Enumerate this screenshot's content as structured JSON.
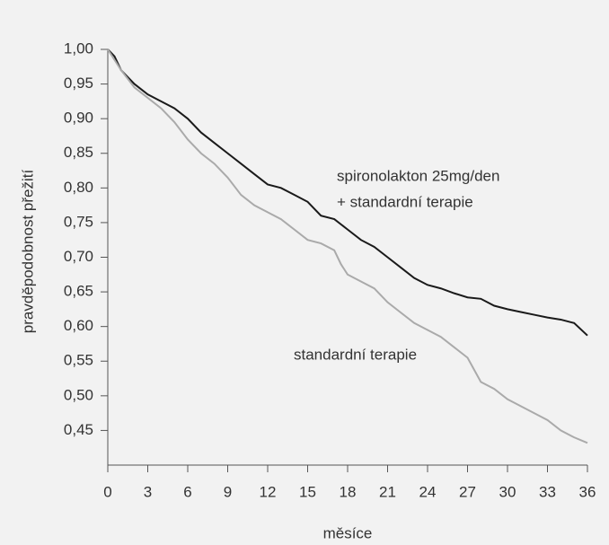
{
  "chart_data": {
    "type": "line",
    "x_label": "měsíce",
    "y_label": "pravděpodobnost přežití",
    "annotations": [
      "spironolakton 25mg/den",
      "+ standardní terapie",
      "standardní terapie"
    ],
    "xlim": [
      0,
      36
    ],
    "xticks": [
      0,
      3,
      6,
      9,
      12,
      15,
      18,
      21,
      24,
      27,
      30,
      33,
      36
    ],
    "ylim": [
      0.4,
      1.0
    ],
    "yticks": [
      {
        "value": 0.45,
        "label": "0,45"
      },
      {
        "value": 0.5,
        "label": "0,50"
      },
      {
        "value": 0.55,
        "label": "0,55"
      },
      {
        "value": 0.6,
        "label": "0,60"
      },
      {
        "value": 0.65,
        "label": "0,65"
      },
      {
        "value": 0.7,
        "label": "0,70"
      },
      {
        "value": 0.75,
        "label": "0,75"
      },
      {
        "value": 0.8,
        "label": "0,80"
      },
      {
        "value": 0.85,
        "label": "0,85"
      },
      {
        "value": 0.9,
        "label": "0,90"
      },
      {
        "value": 0.95,
        "label": "0,95"
      },
      {
        "value": 1.0,
        "label": "1,00"
      }
    ],
    "grid": false,
    "series": [
      {
        "color": "#1a1a1a",
        "x": [
          0,
          0.5,
          1,
          2,
          3,
          4,
          5,
          6,
          7,
          8,
          9,
          10,
          11,
          12,
          13,
          14,
          15,
          16,
          17,
          18,
          19,
          20,
          21,
          22,
          23,
          24,
          25,
          26,
          27,
          28,
          29,
          30,
          31,
          32,
          33,
          34,
          35,
          36
        ],
        "values": [
          1.0,
          0.99,
          0.97,
          0.95,
          0.935,
          0.925,
          0.915,
          0.9,
          0.88,
          0.865,
          0.85,
          0.835,
          0.82,
          0.805,
          0.8,
          0.79,
          0.78,
          0.76,
          0.755,
          0.74,
          0.725,
          0.715,
          0.7,
          0.685,
          0.67,
          0.66,
          0.655,
          0.648,
          0.642,
          0.64,
          0.63,
          0.625,
          0.621,
          0.617,
          0.613,
          0.61,
          0.605,
          0.587
        ]
      },
      {
        "color": "#aaaaaa",
        "x": [
          0,
          1,
          2,
          3,
          4,
          5,
          6,
          7,
          8,
          9,
          10,
          11,
          12,
          13,
          14,
          15,
          16,
          17,
          17.5,
          18,
          19,
          20,
          21,
          22,
          23,
          24,
          25,
          26,
          27,
          28,
          29,
          30,
          31,
          32,
          33,
          34,
          35,
          36
        ],
        "values": [
          1.0,
          0.97,
          0.945,
          0.93,
          0.915,
          0.895,
          0.87,
          0.85,
          0.835,
          0.815,
          0.79,
          0.775,
          0.765,
          0.755,
          0.74,
          0.725,
          0.72,
          0.71,
          0.69,
          0.675,
          0.665,
          0.655,
          0.635,
          0.62,
          0.605,
          0.595,
          0.585,
          0.57,
          0.555,
          0.52,
          0.51,
          0.495,
          0.485,
          0.475,
          0.465,
          0.45,
          0.44,
          0.432
        ]
      }
    ]
  }
}
